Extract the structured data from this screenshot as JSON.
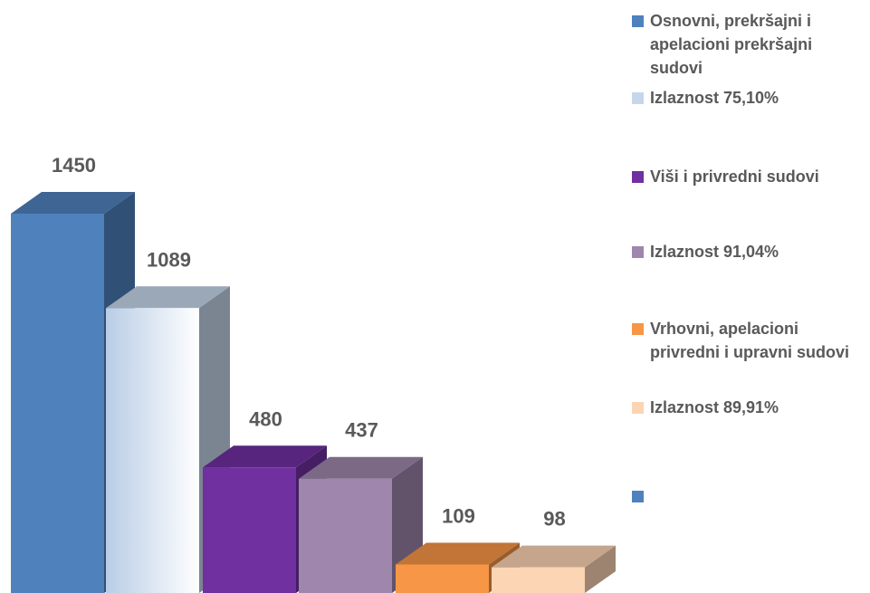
{
  "chart_data": {
    "type": "bar",
    "series": [
      {
        "name": "Osnovni, prekršajni i apelacioni prekršajni sudovi",
        "color": "#4f81bd",
        "values": [
          1450
        ]
      },
      {
        "name": "Izlaznost 75,10%",
        "color": "#c6d7ec",
        "values": [
          1089
        ]
      },
      {
        "name": "Viši i privredni sudovi",
        "color": "#7030a0",
        "values": [
          480
        ]
      },
      {
        "name": "Izlaznost 91,04%",
        "color": "#9e86ac",
        "values": [
          437
        ]
      },
      {
        "name": "Vrhovni, apelacioni privredni i upravni sudovi",
        "color": "#f79646",
        "values": [
          109
        ]
      },
      {
        "name": "Izlaznost 89,91%",
        "color": "#fcd5b4",
        "values": [
          98
        ]
      }
    ]
  }
}
